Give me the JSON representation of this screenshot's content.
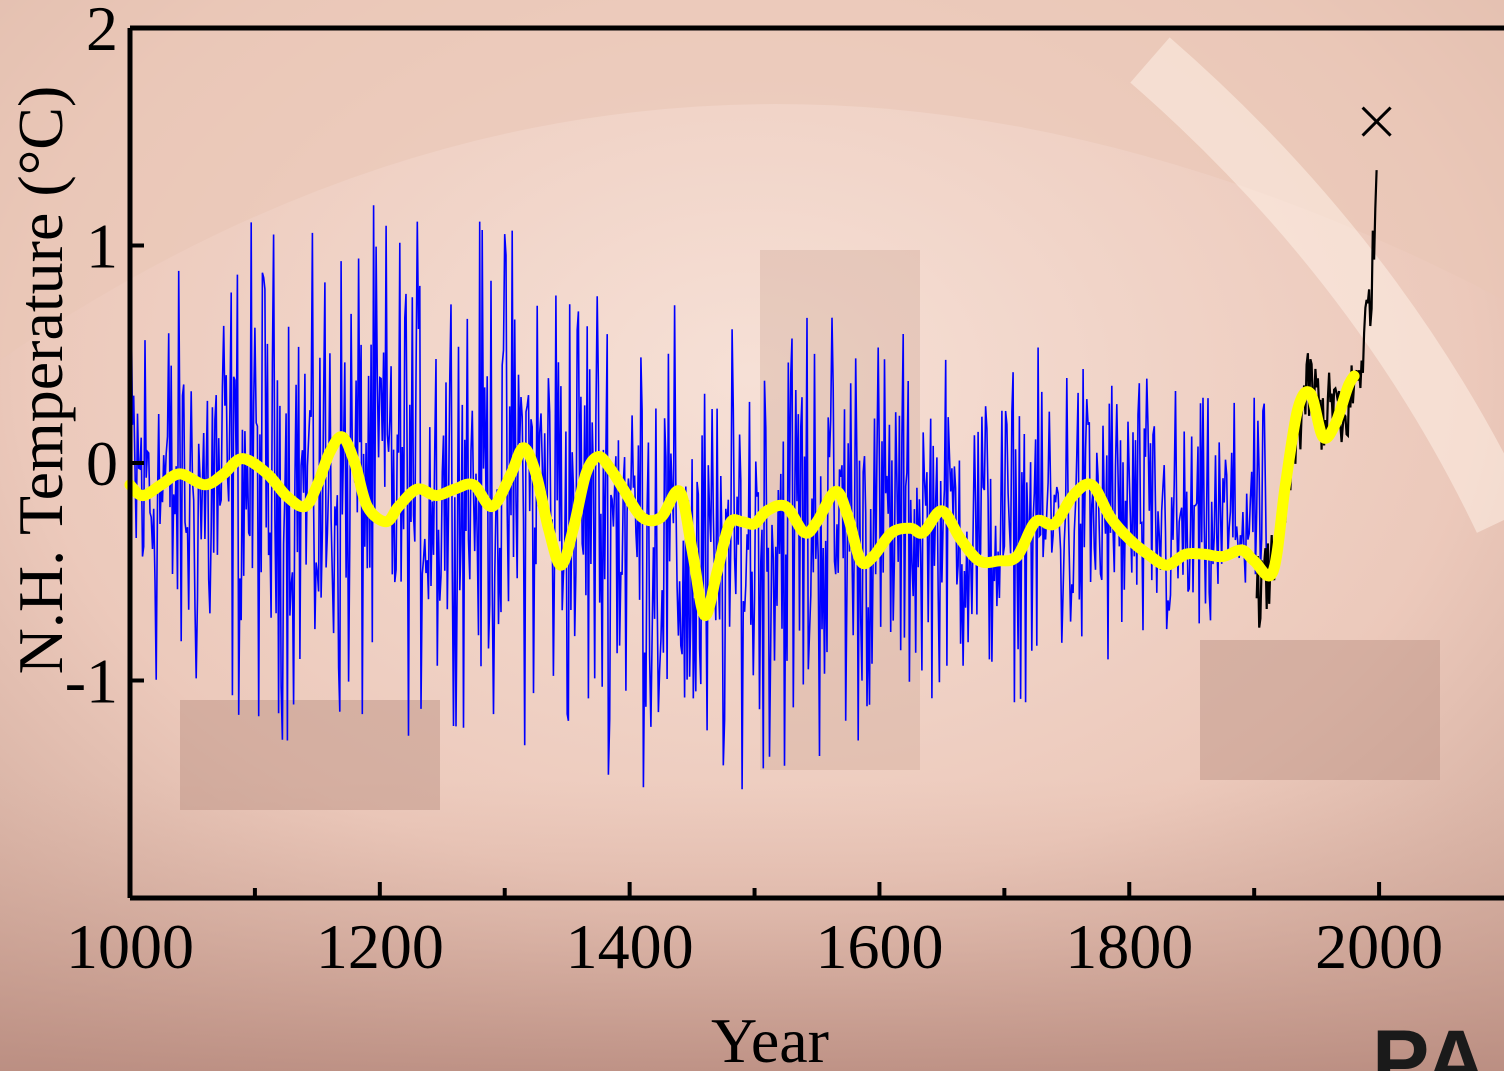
{
  "logo": {
    "text": "PA"
  },
  "colors": {
    "background_light": "#f4d8cc",
    "background_dark": "#b58d7f",
    "proxy_series": "#0000ff",
    "instrumental_series": "#000000",
    "smoothed_series": "#ffff00"
  },
  "chart_data": {
    "type": "line",
    "title": "",
    "xlabel": "Year",
    "ylabel": "N.H. Temperature (°C)",
    "xlim": [
      1000,
      2100
    ],
    "ylim": [
      -2,
      2
    ],
    "x_ticks_major": [
      1000,
      1200,
      1400,
      1600,
      1800,
      2000
    ],
    "x_ticks_minor": [
      1100,
      1300,
      1500,
      1700,
      1900
    ],
    "x_tick_labels": [
      "1000",
      "1200",
      "1400",
      "1600",
      "1800",
      "2000"
    ],
    "y_ticks": [
      -2,
      -1,
      0,
      1,
      2
    ],
    "y_tick_labels": [
      "",
      "-1",
      "0",
      "1",
      "2"
    ],
    "grid": false,
    "legend": "none",
    "series": [
      {
        "style": "annual proxy reconstruction (blue, thin)",
        "x_range": [
          1000,
          1910
        ],
        "envelope": {
          "x": [
            1000,
            1050,
            1100,
            1150,
            1200,
            1250,
            1300,
            1350,
            1400,
            1440,
            1460,
            1480,
            1500,
            1550,
            1600,
            1650,
            1700,
            1750,
            1800,
            1850,
            1900
          ],
          "max": [
            1.0,
            0.85,
            1.15,
            1.05,
            1.2,
            1.05,
            1.15,
            1.1,
            0.95,
            0.7,
            0.5,
            0.6,
            0.75,
            0.95,
            0.65,
            0.5,
            0.45,
            0.6,
            0.5,
            0.3,
            0.3
          ],
          "min": [
            -1.15,
            -1.2,
            -1.25,
            -1.3,
            -1.3,
            -1.2,
            -1.25,
            -1.4,
            -1.45,
            -1.6,
            -1.7,
            -1.55,
            -1.45,
            -1.45,
            -1.25,
            -1.05,
            -1.1,
            -1.1,
            -1.0,
            -1.0,
            -0.75
          ]
        }
      },
      {
        "style": "instrumental record (black, thin)",
        "x": [
          1902,
          1910,
          1915,
          1920,
          1925,
          1930,
          1935,
          1940,
          1945,
          1950,
          1955,
          1960,
          1965,
          1970,
          1975,
          1980,
          1985,
          1990,
          1995,
          1998
        ],
        "values": [
          -0.6,
          -0.55,
          -0.45,
          -0.35,
          -0.2,
          0.0,
          0.15,
          0.3,
          0.35,
          0.3,
          0.2,
          0.25,
          0.3,
          0.1,
          0.25,
          0.35,
          0.45,
          0.65,
          0.9,
          1.35
        ]
      },
      {
        "style": "40-year smoothed (yellow, thick)",
        "x": [
          1000,
          1010,
          1025,
          1040,
          1060,
          1075,
          1090,
          1110,
          1125,
          1140,
          1150,
          1160,
          1170,
          1180,
          1190,
          1205,
          1215,
          1230,
          1245,
          1260,
          1275,
          1290,
          1305,
          1315,
          1325,
          1335,
          1345,
          1355,
          1365,
          1375,
          1385,
          1395,
          1410,
          1425,
          1440,
          1450,
          1460,
          1470,
          1480,
          1490,
          1500,
          1510,
          1525,
          1540,
          1550,
          1565,
          1575,
          1585,
          1595,
          1610,
          1625,
          1635,
          1650,
          1665,
          1680,
          1695,
          1710,
          1725,
          1740,
          1755,
          1770,
          1785,
          1800,
          1815,
          1830,
          1845,
          1860,
          1875,
          1890,
          1900,
          1915,
          1925,
          1935,
          1945,
          1955,
          1965,
          1975,
          1980
        ],
        "values": [
          -0.1,
          -0.15,
          -0.1,
          -0.05,
          -0.1,
          -0.05,
          0.02,
          -0.05,
          -0.15,
          -0.2,
          -0.1,
          0.05,
          0.12,
          0.0,
          -0.2,
          -0.27,
          -0.2,
          -0.12,
          -0.15,
          -0.12,
          -0.1,
          -0.2,
          -0.05,
          0.07,
          -0.05,
          -0.3,
          -0.47,
          -0.3,
          -0.05,
          0.03,
          -0.03,
          -0.12,
          -0.25,
          -0.25,
          -0.13,
          -0.4,
          -0.7,
          -0.5,
          -0.28,
          -0.27,
          -0.28,
          -0.22,
          -0.2,
          -0.32,
          -0.27,
          -0.13,
          -0.25,
          -0.45,
          -0.43,
          -0.32,
          -0.3,
          -0.32,
          -0.22,
          -0.35,
          -0.45,
          -0.45,
          -0.43,
          -0.27,
          -0.28,
          -0.15,
          -0.1,
          -0.25,
          -0.35,
          -0.42,
          -0.47,
          -0.42,
          -0.42,
          -0.43,
          -0.4,
          -0.45,
          -0.5,
          -0.1,
          0.25,
          0.32,
          0.12,
          0.18,
          0.35,
          0.4
        ]
      },
      {
        "style": "single-year marker (black X)",
        "x": [
          1998
        ],
        "values": [
          1.57
        ]
      }
    ]
  }
}
